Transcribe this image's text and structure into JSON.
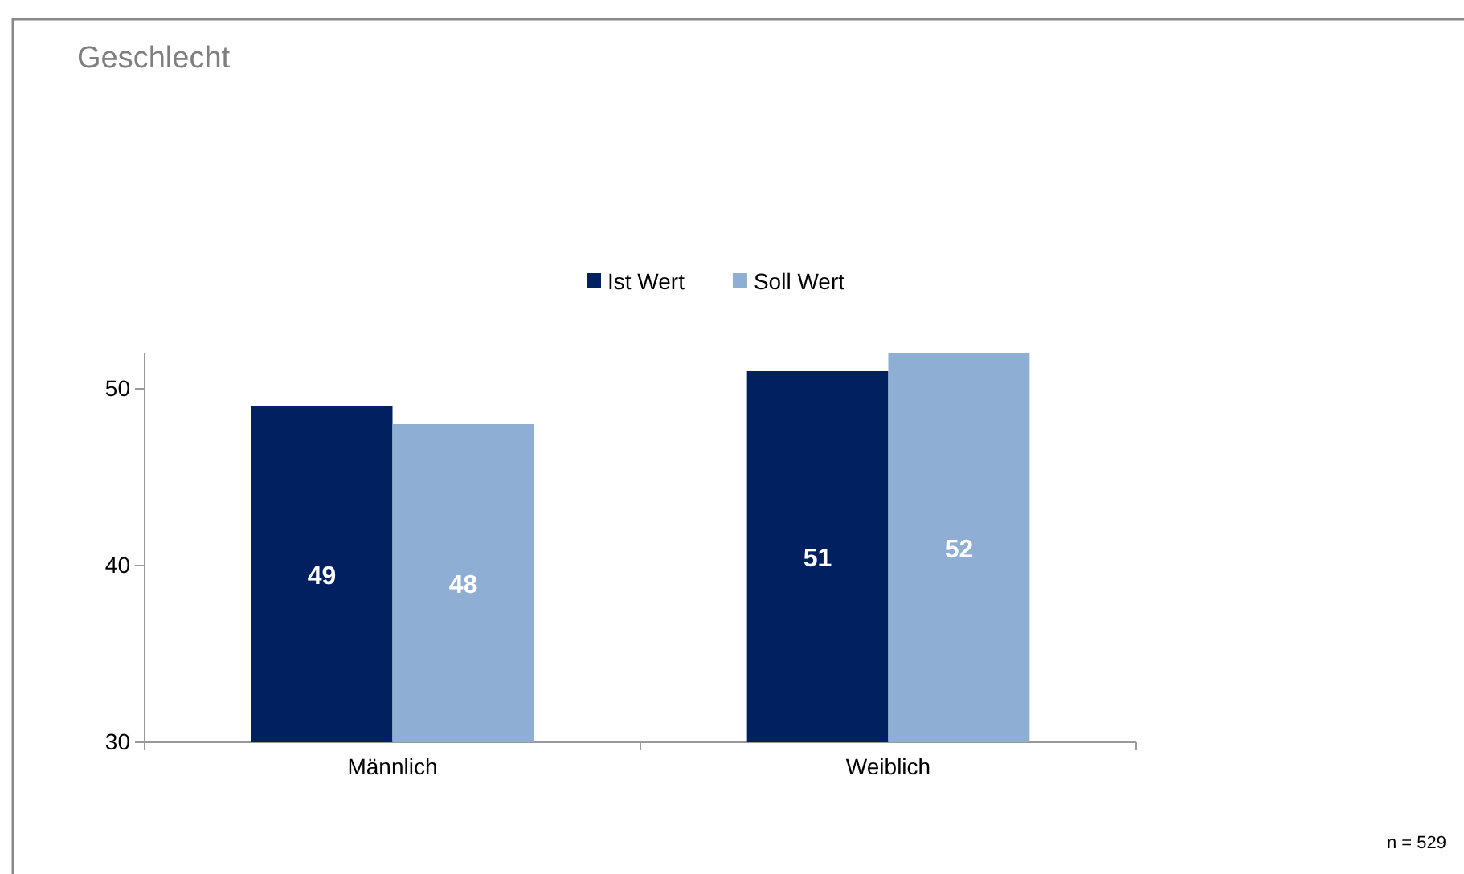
{
  "chart_data": {
    "type": "bar",
    "title": "Geschlecht",
    "categories": [
      "Männlich",
      "Weiblich"
    ],
    "series": [
      {
        "name": "Ist Wert",
        "color": "#002060",
        "values": [
          49,
          51
        ]
      },
      {
        "name": "Soll Wert",
        "color": "#8eaed4",
        "values": [
          48,
          52
        ]
      }
    ],
    "ylim": [
      30,
      52
    ],
    "yticks": [
      30,
      40,
      50
    ],
    "data_labels": true,
    "legend": "top",
    "grid": false,
    "annotations": [
      "n = 529"
    ]
  }
}
